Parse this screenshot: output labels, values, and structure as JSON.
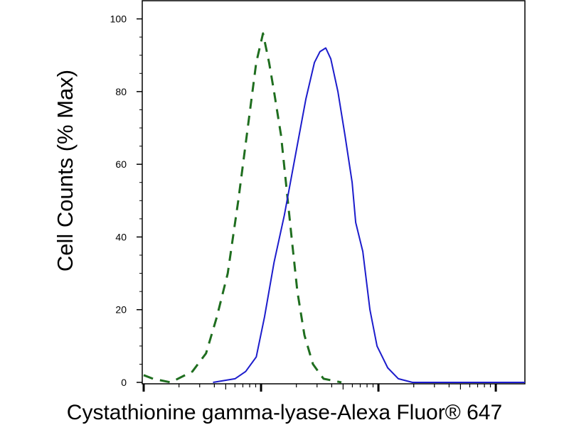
{
  "chart_data": {
    "type": "line",
    "ylabel": "Cell Counts (% Max)",
    "xlabel": "Cystathionine gamma-lyase-Alexa Fluor® 647",
    "xscale": "log",
    "xlim": [
      1,
      1770
    ],
    "xticks": [
      1,
      10,
      100,
      1000
    ],
    "ylim": [
      0,
      105
    ],
    "yticks": [
      0,
      20,
      40,
      60,
      80,
      100
    ],
    "series": [
      {
        "color": "#1f6e1f",
        "dash": true,
        "x": [
          1,
          1.2,
          1.7,
          2.6,
          3.4,
          4.2,
          5.2,
          6.4,
          7.7,
          9.1,
          10.4,
          11.7,
          12.9,
          14.8,
          16.3,
          18.2,
          20.4,
          23.4,
          27.7,
          34.1,
          48.4
        ],
        "values": [
          2,
          1,
          0,
          3,
          8,
          18,
          30,
          50,
          70,
          88,
          96,
          88,
          80,
          68,
          55,
          40,
          25,
          13,
          5,
          1,
          0
        ]
      },
      {
        "color": "#1c1ccc",
        "dash": false,
        "x": [
          3.9,
          6.0,
          7.4,
          9.1,
          10.7,
          12.9,
          15.8,
          19.5,
          24.1,
          28.5,
          31.8,
          35.6,
          39.3,
          45.2,
          51.9,
          59.7,
          64.0,
          73.6,
          84.6,
          97.3,
          120,
          148,
          195,
          1770
        ],
        "values": [
          0,
          1,
          3,
          7,
          18,
          33,
          46,
          62,
          78,
          88,
          91,
          92,
          89,
          80,
          68,
          55,
          44,
          36,
          20,
          10,
          4,
          1,
          0,
          0
        ]
      }
    ]
  }
}
